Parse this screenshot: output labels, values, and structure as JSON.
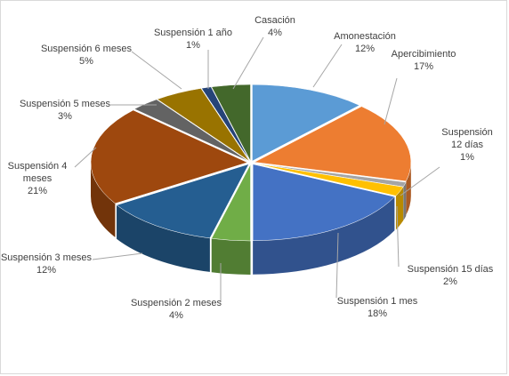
{
  "chart_data": {
    "type": "pie",
    "style": "3d-exploded",
    "title": "",
    "slices": [
      {
        "label": "Amonestación",
        "value": 12,
        "display": "12%",
        "color": "#5b9bd5"
      },
      {
        "label": "Apercibimiento",
        "value": 17,
        "display": "17%",
        "color": "#ed7d31"
      },
      {
        "label": "Suspensión 12 días",
        "value": 1,
        "display": "1%",
        "color": "#a5a5a5"
      },
      {
        "label": "Suspensión 15 días",
        "value": 2,
        "display": "2%",
        "color": "#ffc000"
      },
      {
        "label": "Suspensión 1 mes",
        "value": 18,
        "display": "18%",
        "color": "#4472c4"
      },
      {
        "label": "Suspensión 2 meses",
        "value": 4,
        "display": "4%",
        "color": "#70ad47"
      },
      {
        "label": "Suspensión 3 meses",
        "value": 12,
        "display": "12%",
        "color": "#255e91"
      },
      {
        "label": "Suspensión 4 meses",
        "value": 21,
        "display": "21%",
        "color": "#9e480e"
      },
      {
        "label": "Suspensión 5 meses",
        "value": 3,
        "display": "3%",
        "color": "#636363"
      },
      {
        "label": "Suspensión 6 meses",
        "value": 5,
        "display": "5%",
        "color": "#997300"
      },
      {
        "label": "Suspensión 1 año",
        "value": 1,
        "display": "1%",
        "color": "#264478"
      },
      {
        "label": "Casación",
        "value": 4,
        "display": "4%",
        "color": "#43682b"
      }
    ]
  }
}
